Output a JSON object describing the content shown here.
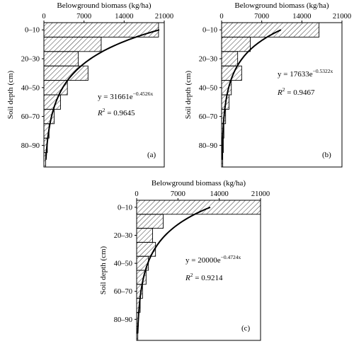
{
  "chart_data": [
    {
      "type": "bar",
      "orientation": "horizontal",
      "panel_label": "(a)",
      "xlabel": "Belowground biomass (kg/ha)",
      "ylabel": "Soil depth (cm)",
      "xlim": [
        0,
        21000
      ],
      "x_ticks": [
        "0",
        "7000",
        "14000",
        "21000"
      ],
      "y_ticks": [
        "0–10",
        "20–30",
        "40–50",
        "60–70",
        "80–90"
      ],
      "categories": [
        "0–10",
        "10–20",
        "20–30",
        "30–40",
        "40–50",
        "50–60",
        "60–70",
        "70–80",
        "80–90",
        "90–100"
      ],
      "values": [
        20000,
        10000,
        6000,
        7700,
        4100,
        2900,
        1800,
        900,
        600,
        300
      ],
      "fit": {
        "a": 31661,
        "b": 0.4526
      },
      "equation": {
        "prefix": "y = 31661e",
        "exponent": "−0.4526x"
      },
      "r2": {
        "label": "R",
        "sup": "2",
        "value": " = 0.9645"
      }
    },
    {
      "type": "bar",
      "orientation": "horizontal",
      "panel_label": "(b)",
      "xlabel": "Belowground biomass (kg/ha)",
      "ylabel": "Soil depth (cm)",
      "xlim": [
        0,
        21000
      ],
      "x_ticks": [
        "0",
        "7000",
        "14000",
        "21000"
      ],
      "y_ticks": [
        "0–10",
        "20–30",
        "40–50",
        "60–70",
        "80–90"
      ],
      "categories": [
        "0–10",
        "10–20",
        "20–30",
        "30–40",
        "40–50",
        "50–60",
        "60–70",
        "70–80",
        "80–90",
        "90–100"
      ],
      "values": [
        17000,
        5000,
        2800,
        3500,
        1700,
        1300,
        700,
        400,
        300,
        200
      ],
      "fit": {
        "a": 17633,
        "b": 0.5322
      },
      "equation": {
        "prefix": "y = 17633e",
        "exponent": "−0.5322x"
      },
      "r2": {
        "label": "R",
        "sup": "2",
        "value": " = 0.9467"
      }
    },
    {
      "type": "bar",
      "orientation": "horizontal",
      "panel_label": "(c)",
      "xlabel": "Belowground biomass (kg/ha)",
      "ylabel": "Soil depth (cm)",
      "xlim": [
        0,
        21000
      ],
      "x_ticks": [
        "0",
        "7000",
        "14000",
        "21000"
      ],
      "y_ticks": [
        "0–10",
        "20–30",
        "40–50",
        "60–70",
        "80–90"
      ],
      "categories": [
        "0–10",
        "10–20",
        "20–30",
        "30–40",
        "40–50",
        "50–60",
        "60–70",
        "70–80",
        "80–90",
        "90–100"
      ],
      "values": [
        21000,
        4500,
        2700,
        3200,
        2000,
        1600,
        1000,
        600,
        300,
        200
      ],
      "fit": {
        "a": 20000,
        "b": 0.4724
      },
      "equation": {
        "prefix": "y = 20000e",
        "exponent": "−0.4724x"
      },
      "r2": {
        "label": "R",
        "sup": "2",
        "value": " = 0.9214"
      }
    }
  ]
}
